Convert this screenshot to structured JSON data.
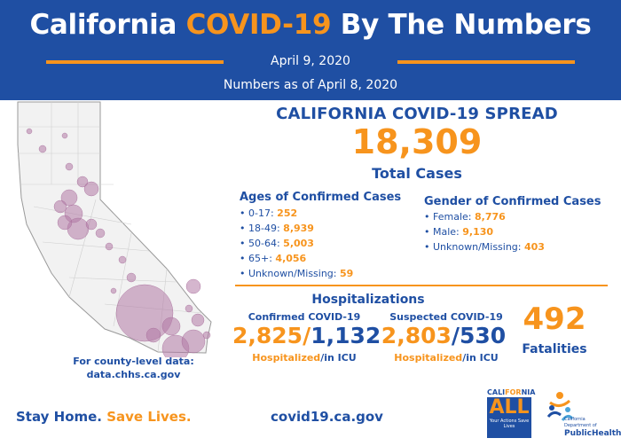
{
  "header": {
    "title_part1": "California ",
    "title_highlight": "COVID-19",
    "title_part2": " By The Numbers",
    "date": "April 9, 2020",
    "as_of": "Numbers as of April 8, 2020"
  },
  "spread": {
    "title": "CALIFORNIA COVID-19 SPREAD",
    "total_cases": "18,309",
    "total_label": "Total Cases"
  },
  "ages": {
    "title": "Ages of Confirmed Cases",
    "items": [
      {
        "label": "0-17: ",
        "value": "252"
      },
      {
        "label": "18-49: ",
        "value": "8,939"
      },
      {
        "label": "50-64: ",
        "value": "5,003"
      },
      {
        "label": "65+: ",
        "value": "4,056"
      },
      {
        "label": "Unknown/Missing: ",
        "value": "59"
      }
    ]
  },
  "gender": {
    "title": "Gender of Confirmed Cases",
    "items": [
      {
        "label": "Female: ",
        "value": "8,776"
      },
      {
        "label": "Male: ",
        "value": "9,130"
      },
      {
        "label": "Unknown/Missing: ",
        "value": "403"
      }
    ]
  },
  "hospitalizations": {
    "title": "Hospitalizations",
    "confirmed": {
      "label": "Confirmed COVID-19",
      "hospitalized": "2,825",
      "sep": "/",
      "icu": "1,132",
      "cap_hosp": "Hospitalized",
      "cap_icu": "/in ICU"
    },
    "suspected": {
      "label": "Suspected COVID-19",
      "hospitalized": "2,803",
      "sep": "/",
      "icu": "530",
      "cap_hosp": "Hospitalized",
      "cap_icu": "/in ICU"
    }
  },
  "fatalities": {
    "value": "492",
    "label": "Fatalities"
  },
  "county": {
    "line1": "For county-level data:",
    "line2": "data.chhs.ca.gov"
  },
  "footer": {
    "stay_home": "Stay Home. ",
    "save_lives": "Save Lives.",
    "website": "covid19.ca.gov"
  },
  "logos": {
    "ca_all_top_1": "CALI",
    "ca_all_top_2": "FOR",
    "ca_all_top_3": "NIA",
    "ca_all_big": "ALL",
    "ca_all_small": "Your Actions Save Lives",
    "cdph_small": "California Department of",
    "cdph_big": "PublicHealth"
  },
  "colors": {
    "brand_blue": "#1f4fa3",
    "accent_orange": "#f7941d",
    "map_bubble": "#b37aa6"
  }
}
